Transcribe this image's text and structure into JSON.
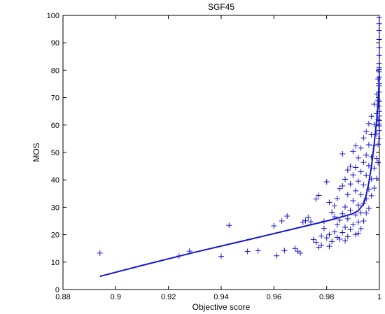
{
  "chart_data": {
    "type": "scatter",
    "title": "SGF45",
    "xlabel": "Objective score",
    "ylabel": "MOS",
    "xlim": [
      0.88,
      1.0
    ],
    "ylim": [
      0,
      100
    ],
    "xticks": [
      0.88,
      0.9,
      0.92,
      0.94,
      0.96,
      0.98,
      1
    ],
    "xtick_labels": [
      "0.88",
      "0.9",
      "0.92",
      "0.94",
      "0.96",
      "0.98",
      "1"
    ],
    "yticks": [
      0,
      10,
      20,
      30,
      40,
      50,
      60,
      70,
      80,
      90,
      100
    ],
    "ytick_labels": [
      "0",
      "10",
      "20",
      "30",
      "40",
      "50",
      "60",
      "70",
      "80",
      "90",
      "100"
    ],
    "grid": false,
    "color": "#1515d0",
    "series": [
      {
        "marker": "plus",
        "x": [
          0.894,
          0.924,
          0.928,
          0.94,
          0.943,
          0.95,
          0.954,
          0.96,
          0.961,
          0.963,
          0.964,
          0.965,
          0.968,
          0.969,
          0.97,
          0.971,
          0.972,
          0.973,
          0.974,
          0.975,
          0.976,
          0.976,
          0.977,
          0.977,
          0.978,
          0.978,
          0.979,
          0.979,
          0.98,
          0.98,
          0.981,
          0.981,
          0.981,
          0.982,
          0.982,
          0.983,
          0.983,
          0.983,
          0.984,
          0.984,
          0.984,
          0.985,
          0.985,
          0.985,
          0.986,
          0.986,
          0.986,
          0.986,
          0.987,
          0.987,
          0.987,
          0.987,
          0.988,
          0.988,
          0.988,
          0.988,
          0.989,
          0.989,
          0.989,
          0.989,
          0.99,
          0.99,
          0.99,
          0.99,
          0.991,
          0.991,
          0.991,
          0.991,
          0.991,
          0.992,
          0.992,
          0.992,
          0.992,
          0.992,
          0.993,
          0.993,
          0.993,
          0.993,
          0.993,
          0.994,
          0.994,
          0.994,
          0.994,
          0.994,
          0.995,
          0.995,
          0.995,
          0.995,
          0.995,
          0.996,
          0.996,
          0.996,
          0.996,
          0.996,
          0.997,
          0.997,
          0.997,
          0.997,
          0.997,
          0.998,
          0.998,
          0.998,
          0.998,
          0.998,
          0.999,
          0.999,
          0.999,
          0.999,
          0.999,
          0.9995,
          0.9995,
          0.9995,
          0.9995,
          0.9995,
          0.9998,
          0.9998,
          0.9998,
          0.9998,
          0.9998,
          0.9999,
          0.9999,
          0.9999,
          0.9999,
          0.9999,
          0.9999,
          0.9999,
          0.9999,
          0.9999,
          0.9999,
          0.9999,
          0.9999,
          0.9999,
          0.9999,
          0.9999,
          0.9999,
          0.9999,
          0.9999
        ],
        "y": [
          13.3,
          12.2,
          14.0,
          12.1,
          23.4,
          13.9,
          14.2,
          23.2,
          12.3,
          25.0,
          14.2,
          26.8,
          15.0,
          14.0,
          13.3,
          24.6,
          25.1,
          26.3,
          24.7,
          18.2,
          33.0,
          17.2,
          15.4,
          34.3,
          19.5,
          16.2,
          24.9,
          22.3,
          39.3,
          18.8,
          31.8,
          20.1,
          15.8,
          28.2,
          17.5,
          30.5,
          21.0,
          26.5,
          33.2,
          19.0,
          23.6,
          36.8,
          25.3,
          18.4,
          49.5,
          37.8,
          27.6,
          20.8,
          40.2,
          30.1,
          22.7,
          17.8,
          43.6,
          34.6,
          25.8,
          19.3,
          45.0,
          38.5,
          28.9,
          21.9,
          50.4,
          41.8,
          32.4,
          23.7,
          52.4,
          44.5,
          36.0,
          27.2,
          20.1,
          48.0,
          39.5,
          30.8,
          24.6,
          20.5,
          51.6,
          43.0,
          34.6,
          28.0,
          22.2,
          55.3,
          46.4,
          38.2,
          31.5,
          25.0,
          57.6,
          49.0,
          41.7,
          33.1,
          27.9,
          60.5,
          52.8,
          45.2,
          36.5,
          29.6,
          63.2,
          56.5,
          48.4,
          40.3,
          34.2,
          67.6,
          60.2,
          52.5,
          44.3,
          37.0,
          71.3,
          64.2,
          56.7,
          47.8,
          40.5,
          76.8,
          69.1,
          62.0,
          53.0,
          46.3,
          79.4,
          74.3,
          66.9,
          60.4,
          55.1,
          80.9,
          77.5,
          75.1,
          72.0,
          68.5,
          65.0,
          63.3,
          61.6,
          59.7,
          58.0,
          99.2,
          97.0,
          94.5,
          91.2,
          88.3,
          85.4,
          82.5,
          80.2
        ],
        "note": "approximate reading of scatter points"
      },
      {
        "marker": "line",
        "x": [
          0.894,
          0.91,
          0.93,
          0.95,
          0.97,
          0.98,
          0.985,
          0.99,
          0.992,
          0.994,
          0.995,
          0.996,
          0.997,
          0.998,
          0.999,
          0.9995,
          1.0
        ],
        "y": [
          4.8,
          8.8,
          13.6,
          18.1,
          22.7,
          25.0,
          26.3,
          27.7,
          28.8,
          31.2,
          34.5,
          39.0,
          45.0,
          53.0,
          62.0,
          68.0,
          78.0
        ]
      }
    ]
  }
}
